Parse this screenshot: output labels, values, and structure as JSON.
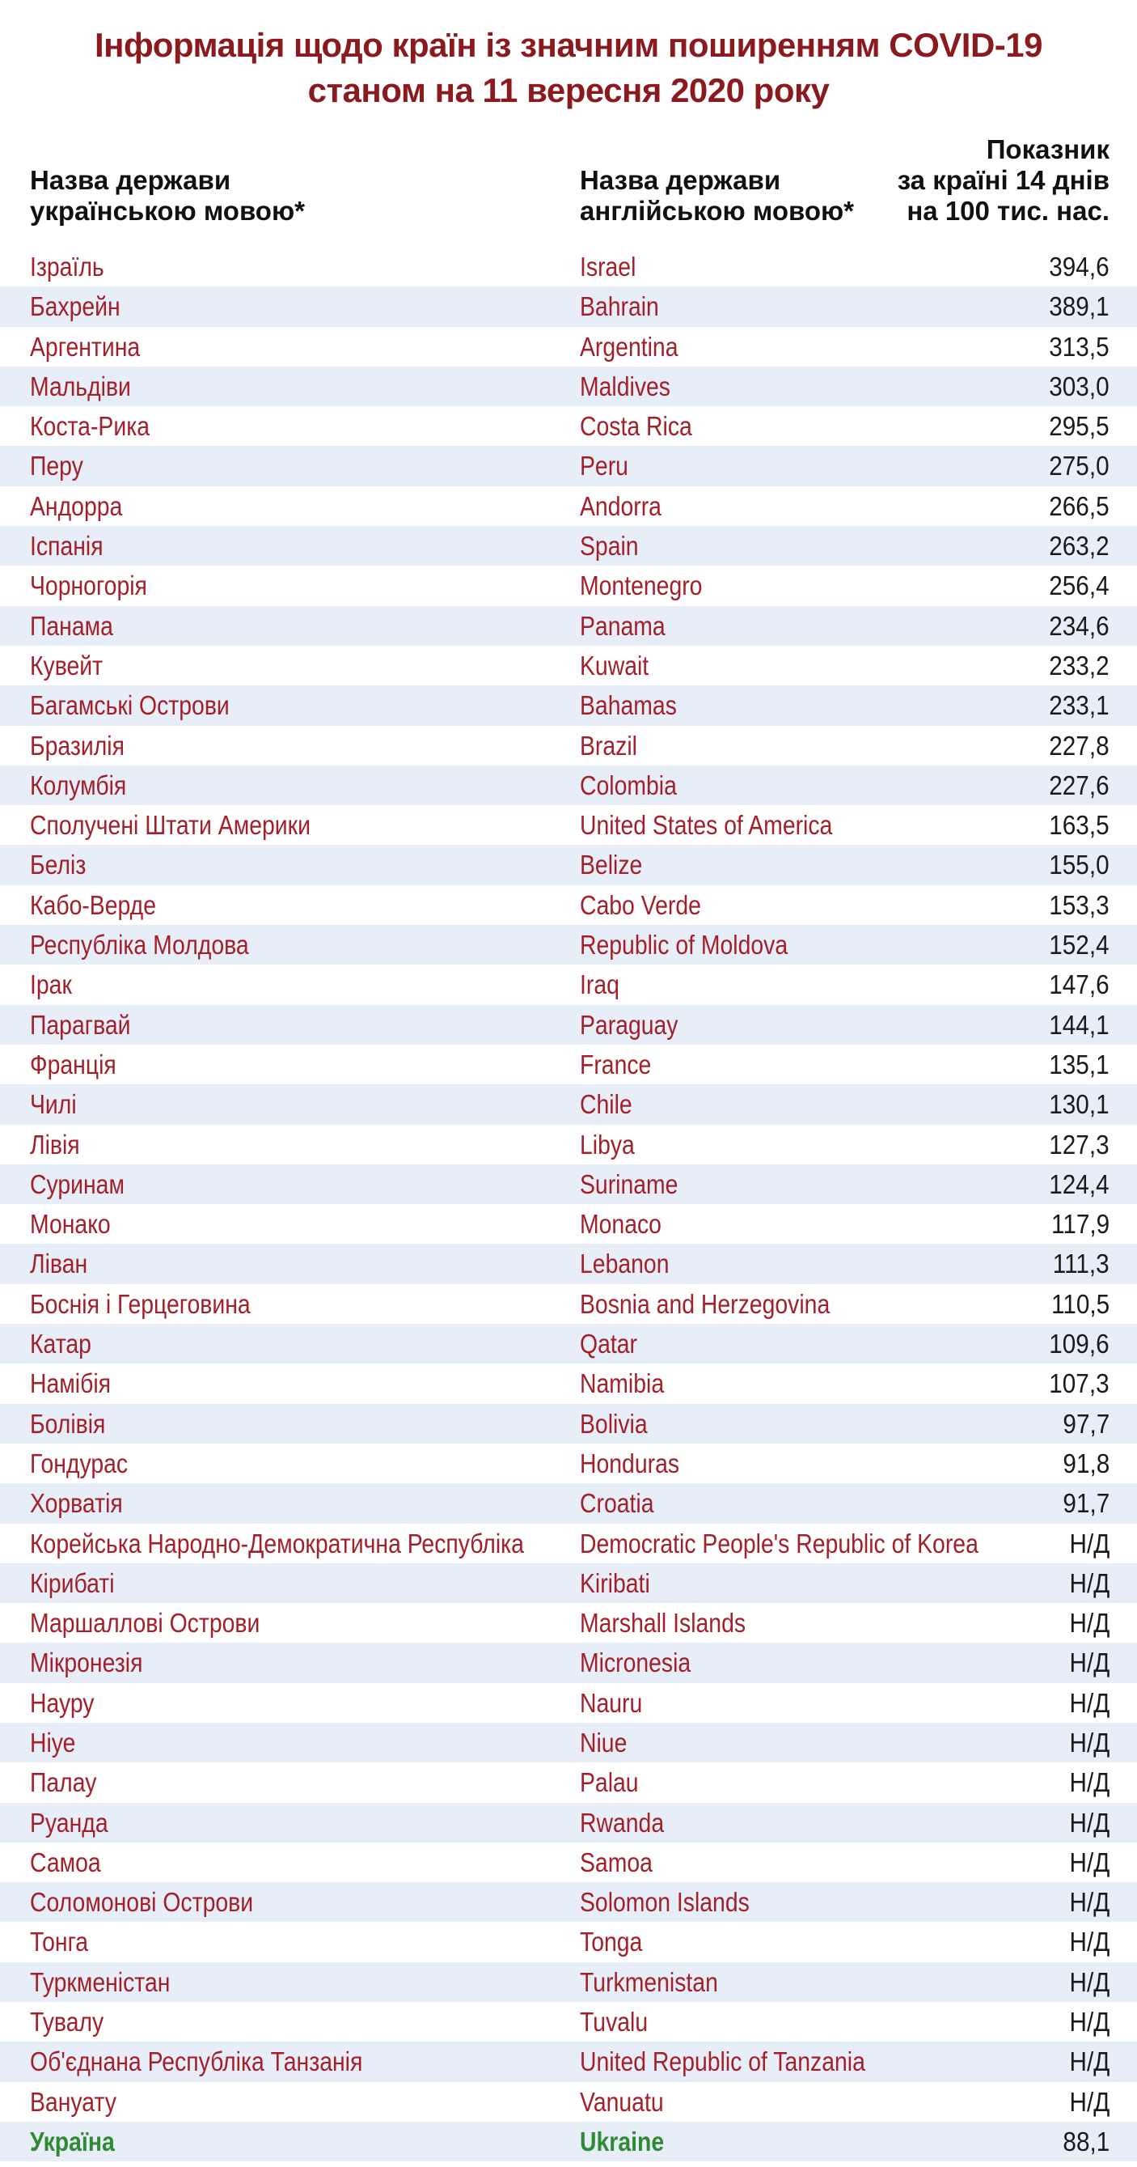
{
  "title": {
    "line1": "Інформація щодо країн із значним поширенням COVID-19",
    "line2": "станом на 11 вересня 2020 року"
  },
  "headers": {
    "ua_line1": "Назва держави",
    "ua_line2": "українською мовою*",
    "en_line1": "Назва держави",
    "en_line2": "англійською мовою*",
    "val_line1": "Показник",
    "val_line2": "за країні 14 днів",
    "val_line3": "на 100 тис. нас."
  },
  "rows": [
    {
      "ua": "Ізраїль",
      "en": "Israel",
      "value": "394,6"
    },
    {
      "ua": "Бахрейн",
      "en": "Bahrain",
      "value": "389,1"
    },
    {
      "ua": "Аргентина",
      "en": "Argentina",
      "value": "313,5"
    },
    {
      "ua": "Мальдіви",
      "en": "Maldives",
      "value": "303,0"
    },
    {
      "ua": "Коста-Рика",
      "en": "Costa Rica",
      "value": "295,5"
    },
    {
      "ua": "Перу",
      "en": "Peru",
      "value": "275,0"
    },
    {
      "ua": "Андорра",
      "en": "Andorra",
      "value": "266,5"
    },
    {
      "ua": "Іспанія",
      "en": "Spain",
      "value": "263,2"
    },
    {
      "ua": "Чорногорія",
      "en": "Montenegro",
      "value": "256,4"
    },
    {
      "ua": "Панама",
      "en": "Panama",
      "value": "234,6"
    },
    {
      "ua": "Кувейт",
      "en": "Kuwait",
      "value": "233,2"
    },
    {
      "ua": "Багамські Острови",
      "en": "Bahamas",
      "value": "233,1"
    },
    {
      "ua": "Бразилія",
      "en": "Brazil",
      "value": "227,8"
    },
    {
      "ua": "Колумбія",
      "en": "Colombia",
      "value": "227,6"
    },
    {
      "ua": "Сполучені Штати Америки",
      "en": "United States of America",
      "value": "163,5"
    },
    {
      "ua": "Беліз",
      "en": "Belize",
      "value": "155,0"
    },
    {
      "ua": "Кабо-Верде",
      "en": "Cabo Verde",
      "value": "153,3"
    },
    {
      "ua": "Республіка Молдова",
      "en": "Republic of Moldova",
      "value": "152,4"
    },
    {
      "ua": "Ірак",
      "en": "Iraq",
      "value": "147,6"
    },
    {
      "ua": "Парагвай",
      "en": "Paraguay",
      "value": "144,1"
    },
    {
      "ua": "Франція",
      "en": "France",
      "value": "135,1"
    },
    {
      "ua": "Чилі",
      "en": "Chile",
      "value": "130,1"
    },
    {
      "ua": "Лівія",
      "en": "Libya",
      "value": "127,3"
    },
    {
      "ua": "Суринам",
      "en": "Suriname",
      "value": "124,4"
    },
    {
      "ua": "Монако",
      "en": "Monaco",
      "value": "117,9"
    },
    {
      "ua": "Ліван",
      "en": "Lebanon",
      "value": "111,3"
    },
    {
      "ua": "Боснія і Герцеговина",
      "en": "Bosnia and Herzegovina",
      "value": "110,5"
    },
    {
      "ua": "Катар",
      "en": "Qatar",
      "value": "109,6"
    },
    {
      "ua": "Намібія",
      "en": "Namibia",
      "value": "107,3"
    },
    {
      "ua": "Болівія",
      "en": "Bolivia",
      "value": "97,7"
    },
    {
      "ua": "Гондурас",
      "en": "Honduras",
      "value": "91,8"
    },
    {
      "ua": "Хорватія",
      "en": "Croatia",
      "value": "91,7"
    },
    {
      "ua": "Корейська Народно-Демократична Республіка",
      "en": "Democratic People's Republic of Korea",
      "value": "Н/Д"
    },
    {
      "ua": "Кірибаті",
      "en": "Kiribati",
      "value": "Н/Д"
    },
    {
      "ua": "Маршаллові Острови",
      "en": "Marshall Islands",
      "value": "Н/Д"
    },
    {
      "ua": "Мікронезія",
      "en": "Micronesia",
      "value": "Н/Д"
    },
    {
      "ua": "Науру",
      "en": "Nauru",
      "value": "Н/Д"
    },
    {
      "ua": "Ніуе",
      "en": "Niue",
      "value": "Н/Д"
    },
    {
      "ua": "Палау",
      "en": "Palau",
      "value": "Н/Д"
    },
    {
      "ua": "Руанда",
      "en": "Rwanda",
      "value": "Н/Д"
    },
    {
      "ua": "Самоа",
      "en": "Samoa",
      "value": "Н/Д"
    },
    {
      "ua": "Соломонові Острови",
      "en": "Solomon Islands",
      "value": "Н/Д"
    },
    {
      "ua": "Тонга",
      "en": "Tonga",
      "value": "Н/Д"
    },
    {
      "ua": "Туркменістан",
      "en": "Turkmenistan",
      "value": "Н/Д"
    },
    {
      "ua": "Тувалу",
      "en": "Tuvalu",
      "value": "Н/Д"
    },
    {
      "ua": "Об'єднана Республіка Танзанія",
      "en": "United Republic of Tanzania",
      "value": "Н/Д"
    },
    {
      "ua": "Вануату",
      "en": "Vanuatu",
      "value": "Н/Д"
    },
    {
      "ua": "Україна",
      "en": "Ukraine",
      "value": "88,1",
      "highlight": true
    }
  ],
  "colors": {
    "title": "#8b1a1f",
    "country_text": "#a3202a",
    "highlight_text": "#2e8a34",
    "stripe": "#e8eef7",
    "value_text": "#1a1a1a"
  }
}
